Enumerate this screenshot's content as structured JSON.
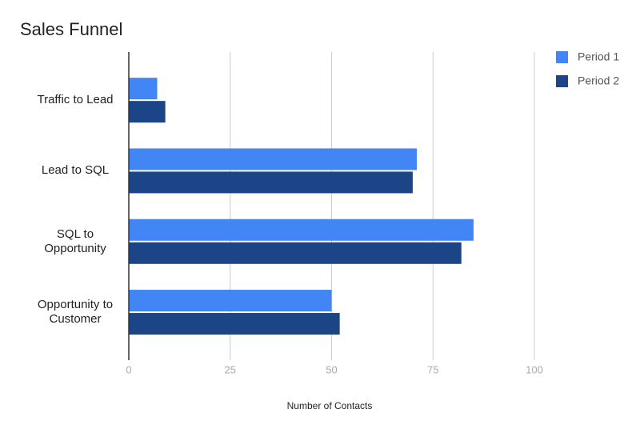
{
  "chart_data": {
    "type": "barh",
    "title": "Sales Funnel",
    "categories": [
      "Traffic to Lead",
      "Lead to SQL",
      "SQL to Opportunity",
      "Opportunity to Customer"
    ],
    "series": [
      {
        "name": "Period 1",
        "color": "#4285f4",
        "values": [
          7,
          71,
          85,
          50
        ]
      },
      {
        "name": "Period 2",
        "color": "#1c4587",
        "values": [
          9,
          70,
          82,
          52
        ]
      }
    ],
    "xlabel": "Number of Contacts",
    "xlim": [
      0,
      100
    ],
    "xticks": [
      0,
      25,
      50,
      75,
      100
    ],
    "grid": true,
    "legend": "top-right"
  }
}
